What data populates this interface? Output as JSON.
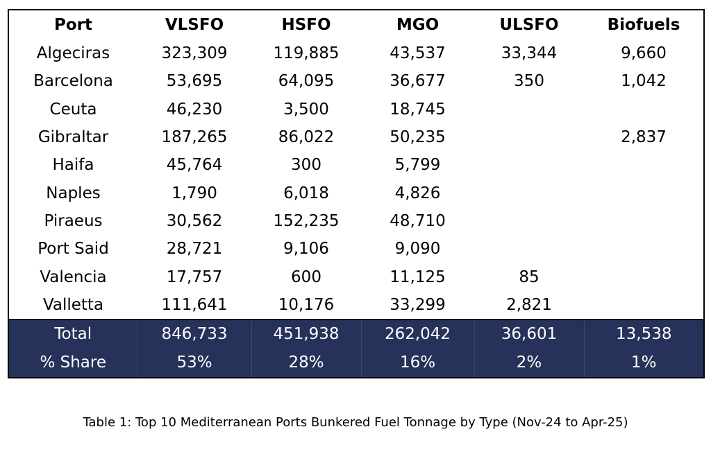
{
  "table": {
    "headers": [
      "Port",
      "VLSFO",
      "HSFO",
      "MGO",
      "ULSFO",
      "Biofuels"
    ],
    "rows": [
      [
        "Algeciras",
        "323,309",
        "119,885",
        "43,537",
        "33,344",
        "9,660"
      ],
      [
        "Barcelona",
        "53,695",
        "64,095",
        "36,677",
        "350",
        "1,042"
      ],
      [
        "Ceuta",
        "46,230",
        "3,500",
        "18,745",
        "",
        ""
      ],
      [
        "Gibraltar",
        "187,265",
        "86,022",
        "50,235",
        "",
        "2,837"
      ],
      [
        "Haifa",
        "45,764",
        "300",
        "5,799",
        "",
        ""
      ],
      [
        "Naples",
        "1,790",
        "6,018",
        "4,826",
        "",
        ""
      ],
      [
        "Piraeus",
        "30,562",
        "152,235",
        "48,710",
        "",
        ""
      ],
      [
        "Port Said",
        "28,721",
        "9,106",
        "9,090",
        "",
        ""
      ],
      [
        "Valencia",
        "17,757",
        "600",
        "11,125",
        "85",
        ""
      ],
      [
        "Valletta",
        "111,641",
        "10,176",
        "33,299",
        "2,821",
        ""
      ]
    ],
    "footer": [
      [
        "Total",
        "846,733",
        "451,938",
        "262,042",
        "36,601",
        "13,538"
      ],
      [
        "% Share",
        "53%",
        "28%",
        "16%",
        "2%",
        "1%"
      ]
    ],
    "footer_color": "#27325a"
  },
  "caption": "Table 1: Top 10 Mediterranean Ports Bunkered Fuel Tonnage by Type (Nov-24 to Apr-25)"
}
